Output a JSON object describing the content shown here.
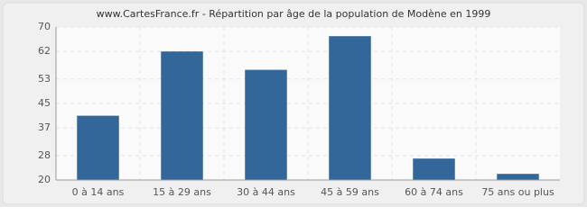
{
  "chart_data": {
    "type": "bar",
    "title": "www.CartesFrance.fr - Répartition par âge de la population de Modène en 1999",
    "categories": [
      "0 à 14 ans",
      "15 à 29 ans",
      "30 à 44 ans",
      "45 à 59 ans",
      "60 à 74 ans",
      "75 ans ou plus"
    ],
    "values": [
      41,
      62,
      56,
      67,
      27,
      22
    ],
    "color": "#336699",
    "ylim": [
      20,
      70
    ],
    "yticks": [
      20,
      28,
      37,
      45,
      53,
      62,
      70
    ],
    "grid": true
  }
}
